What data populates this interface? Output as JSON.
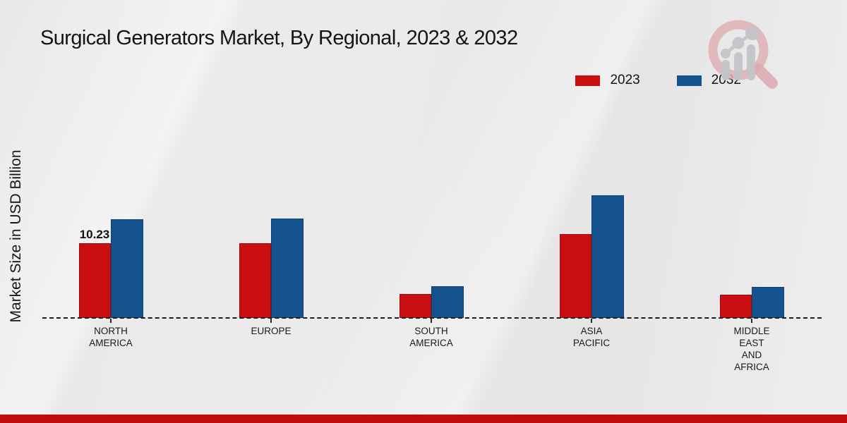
{
  "title": "Surgical Generators Market, By Regional, 2023 & 2032",
  "ylabel": "Market Size in USD Billion",
  "legend": [
    {
      "label": "2023",
      "color": "#c90f12"
    },
    {
      "label": "2032",
      "color": "#15538e"
    }
  ],
  "chart_data": {
    "type": "bar",
    "title": "Surgical Generators Market, By Regional, 2023 & 2032",
    "ylabel": "Market Size in USD Billion",
    "xlabel": "",
    "categories": [
      "NORTH AMERICA",
      "EUROPE",
      "SOUTH AMERICA",
      "ASIA PACIFIC",
      "MIDDLE EAST AND AFRICA"
    ],
    "category_label_lines": [
      [
        "NORTH",
        "AMERICA"
      ],
      [
        "EUROPE"
      ],
      [
        "SOUTH",
        "AMERICA"
      ],
      [
        "ASIA",
        "PACIFIC"
      ],
      [
        "MIDDLE",
        "EAST",
        "AND",
        "AFRICA"
      ]
    ],
    "series": [
      {
        "name": "2023",
        "color": "#c90f12",
        "values": [
          10.23,
          10.2,
          3.3,
          11.5,
          3.2
        ]
      },
      {
        "name": "2032",
        "color": "#15538e",
        "values": [
          13.5,
          13.6,
          4.35,
          16.75,
          4.25
        ]
      }
    ],
    "annotations": [
      {
        "text": "10.23",
        "series_index": 0,
        "category_index": 0
      }
    ],
    "ylim": [
      0,
      20
    ],
    "grid": false,
    "y_axis_ticks_visible": false,
    "baseline_style": "dashed",
    "legend_position": "top-right"
  },
  "footer": {
    "bar_color": "#c20b0d"
  },
  "logo": {
    "icon": "magnifier-bar-chart-logo",
    "ring_color": "#dfb0b4",
    "chart_color": "#c3c5c8"
  }
}
